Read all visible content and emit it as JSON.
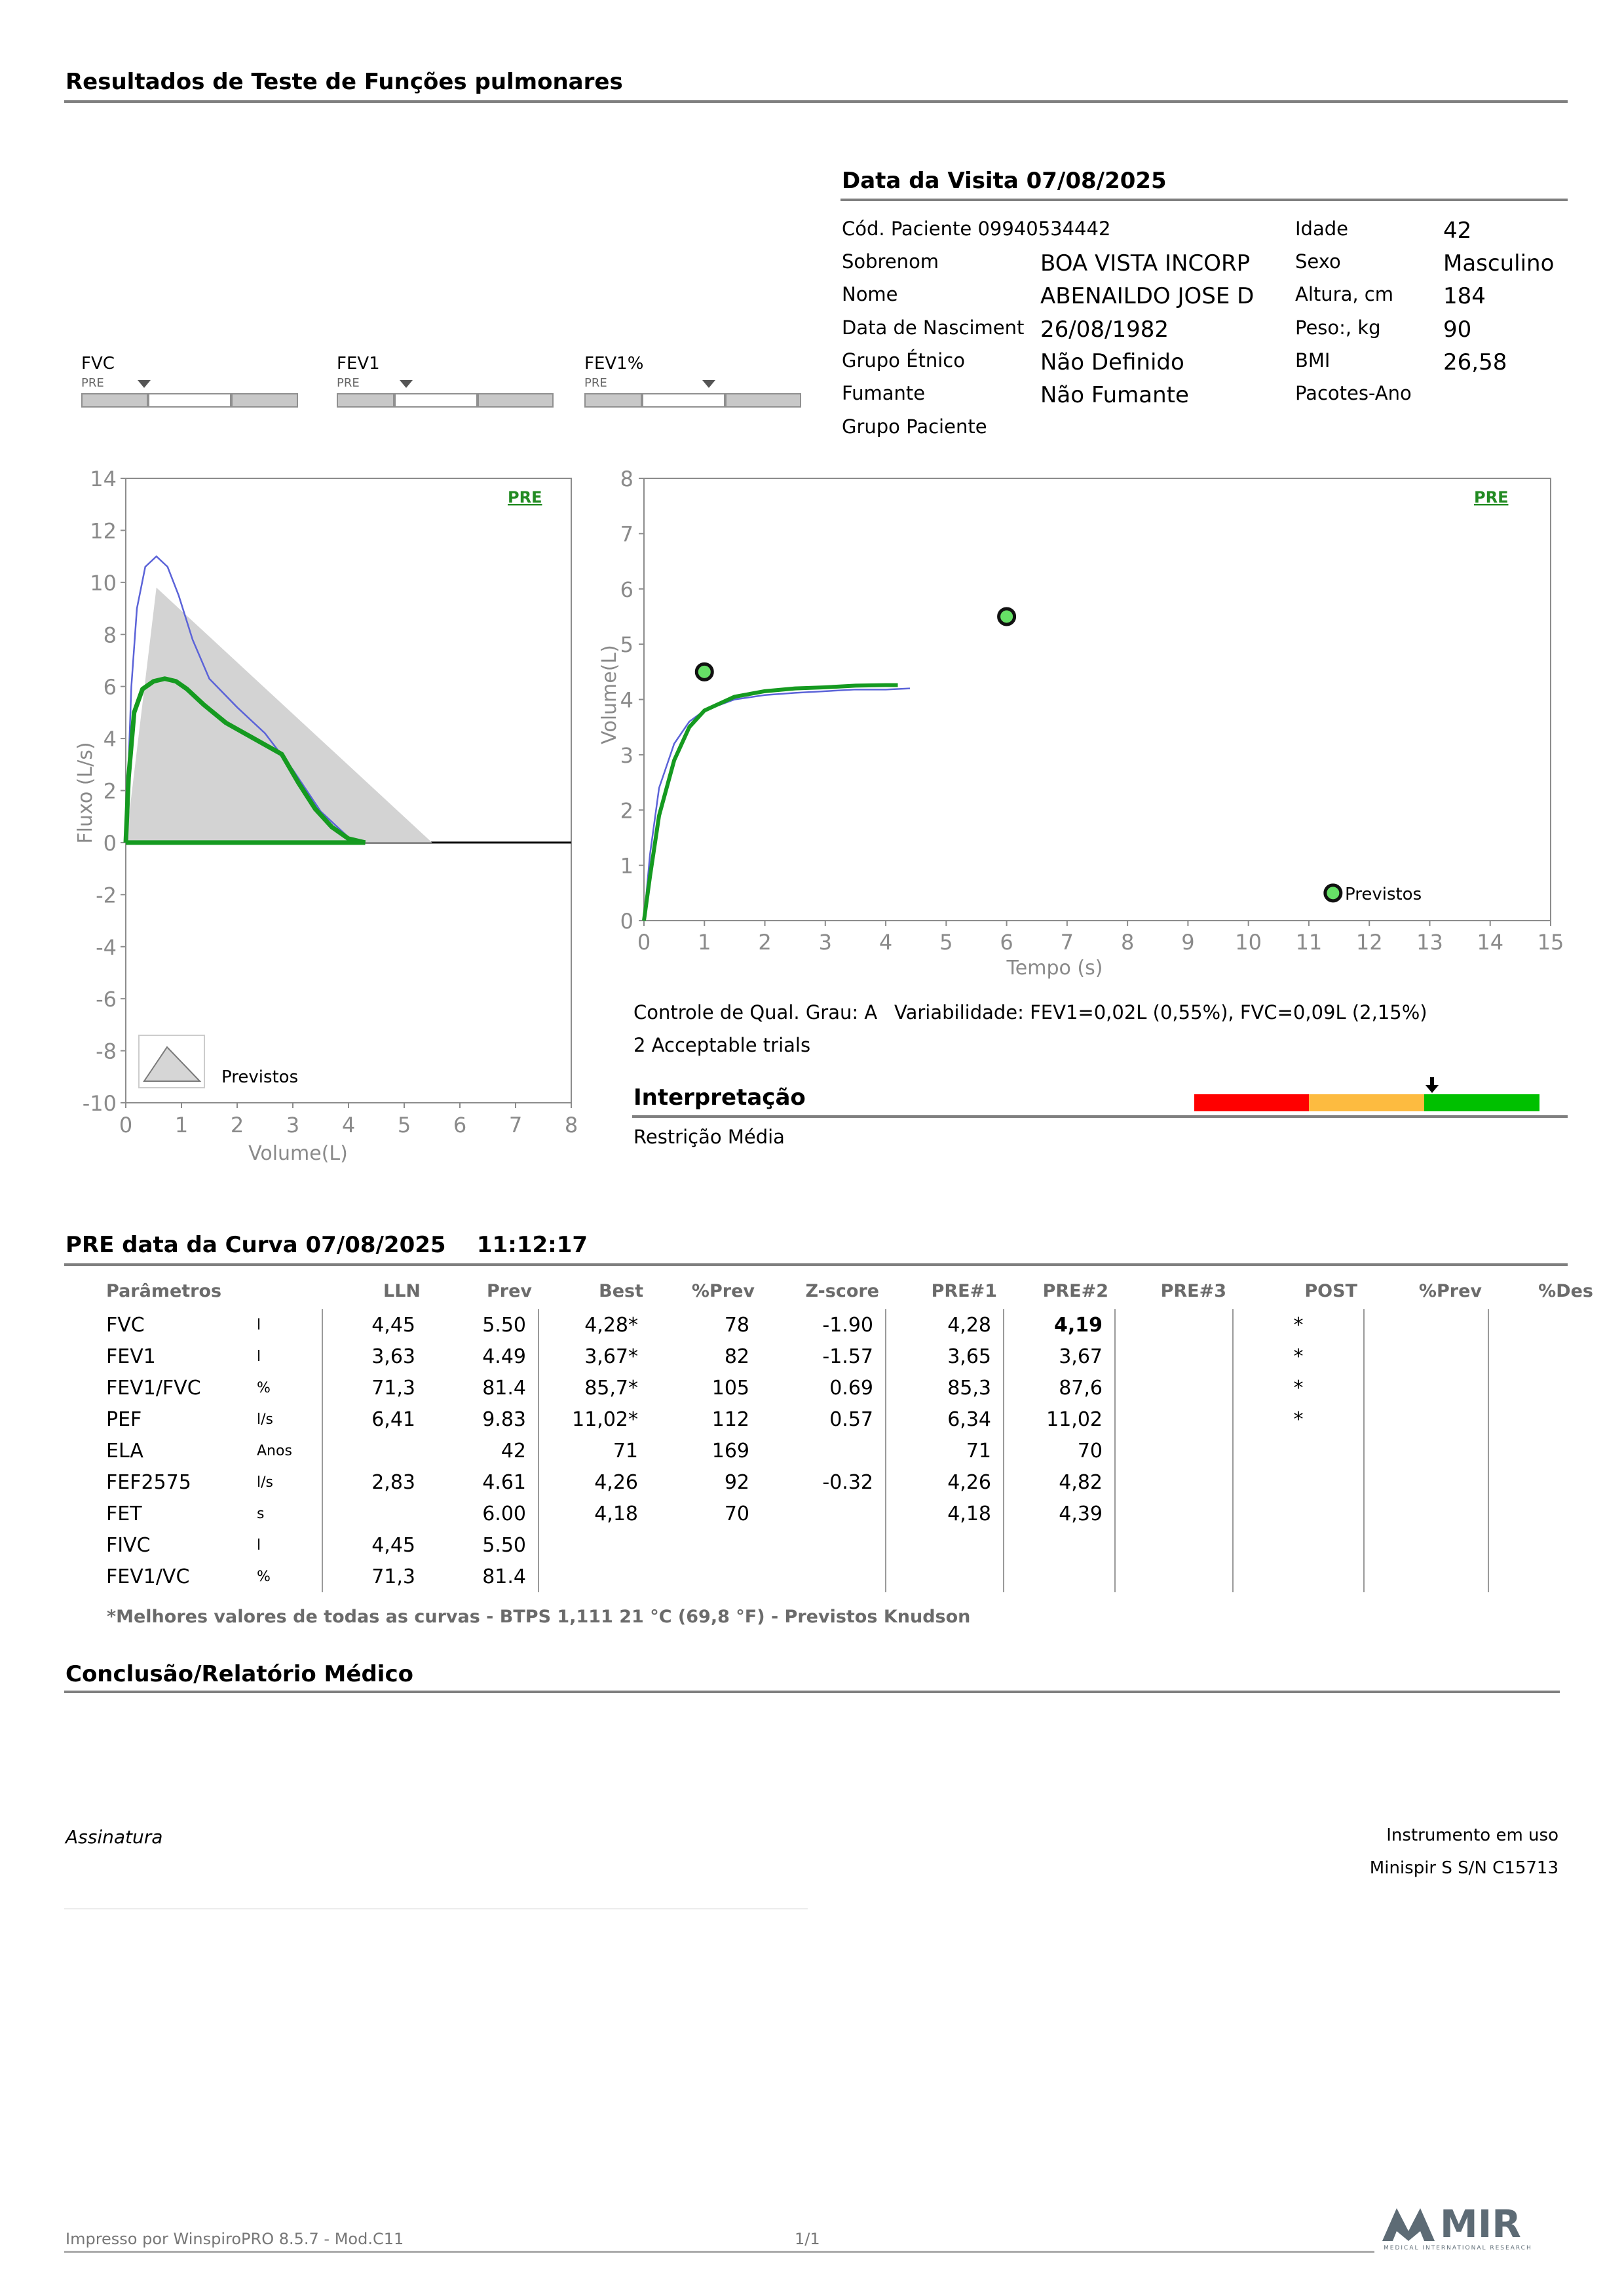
{
  "header": {
    "title": "Resultados de Teste de Funções pulmonares"
  },
  "visit": {
    "title": "Data da Visita 07/08/2025",
    "patient_code_label": "Cód. Paciente 09940534442",
    "surname_label": "Sobrenom",
    "surname": "BOA VISTA INCORP",
    "name_label": "Nome",
    "name": "ABENAILDO JOSE D",
    "birth_label": "Data de Nasciment",
    "birth": "26/08/1982",
    "ethnic_label": "Grupo Étnico",
    "ethnic": "Não Definido",
    "smoker_label": "Fumante",
    "smoker": "Não Fumante",
    "group_label": "Grupo Paciente",
    "age_label": "Idade",
    "age": "42",
    "sex_label": "Sexo",
    "sex": "Masculino",
    "height_label": "Altura, cm",
    "height": "184",
    "weight_label": "Peso:, kg",
    "weight": "90",
    "bmi_label": "BMI",
    "bmi": "26,58",
    "packs_label": "Pacotes-Ano"
  },
  "indicators": [
    {
      "label": "FVC",
      "tag": "PRE"
    },
    {
      "label": "FEV1",
      "tag": "PRE"
    },
    {
      "label": "FEV1%",
      "tag": "PRE"
    }
  ],
  "chart_data": [
    {
      "type": "line",
      "title": "",
      "tag": "PRE",
      "xlabel": "Volume(L)",
      "ylabel": "Fluxo (L/s)",
      "xlim": [
        0,
        8
      ],
      "ylim": [
        -10,
        14
      ],
      "xticks": [
        "0",
        "1",
        "2",
        "3",
        "4",
        "5",
        "6",
        "7",
        "8"
      ],
      "yticks": [
        "14",
        "12",
        "10",
        "8",
        "6",
        "4",
        "2",
        "0",
        "-2",
        "-4",
        "-6",
        "-8",
        "-10"
      ],
      "legend": "Previstos",
      "series": [
        {
          "name": "Previstos",
          "style": "filled-gray",
          "x": [
            0,
            0.55,
            5.5
          ],
          "y": [
            0,
            9.8,
            0
          ]
        },
        {
          "style": "thin-blue",
          "x": [
            0,
            0.1,
            0.2,
            0.35,
            0.55,
            0.75,
            0.95,
            1.2,
            1.5,
            2.0,
            2.5,
            3.0,
            3.5,
            4.0,
            4.3
          ],
          "y": [
            0,
            6.0,
            9.0,
            10.6,
            11.0,
            10.6,
            9.5,
            7.8,
            6.3,
            5.2,
            4.2,
            2.8,
            1.2,
            0.2,
            0
          ]
        },
        {
          "style": "thick-green",
          "x": [
            0,
            0.05,
            0.15,
            0.3,
            0.5,
            0.7,
            0.9,
            1.1,
            1.4,
            1.8,
            2.3,
            2.8,
            3.1,
            3.4,
            3.7,
            4.0,
            4.3
          ],
          "y": [
            0,
            2.5,
            5.0,
            5.9,
            6.2,
            6.3,
            6.2,
            5.9,
            5.3,
            4.6,
            4.0,
            3.4,
            2.3,
            1.3,
            0.6,
            0.15,
            0
          ]
        },
        {
          "style": "thick-green-baseline",
          "x": [
            0,
            4.3
          ],
          "y": [
            0,
            0
          ]
        }
      ]
    },
    {
      "type": "line",
      "title": "",
      "tag": "PRE",
      "xlabel": "Tempo (s)",
      "ylabel": "Volume(L)",
      "xlim": [
        0,
        15
      ],
      "ylim": [
        0,
        8
      ],
      "xticks": [
        "0",
        "1",
        "2",
        "3",
        "4",
        "5",
        "6",
        "7",
        "8",
        "9",
        "10",
        "11",
        "12",
        "13",
        "14",
        "15"
      ],
      "yticks": [
        "8",
        "7",
        "6",
        "5",
        "4",
        "3",
        "2",
        "1",
        "0"
      ],
      "legend": "Previstos",
      "series": [
        {
          "style": "thin-blue",
          "x": [
            0,
            0.1,
            0.25,
            0.5,
            0.75,
            1.0,
            1.5,
            2.0,
            2.5,
            3.0,
            3.5,
            4.0,
            4.4
          ],
          "y": [
            0,
            1.2,
            2.4,
            3.2,
            3.6,
            3.8,
            4.0,
            4.08,
            4.12,
            4.15,
            4.18,
            4.18,
            4.2
          ]
        },
        {
          "style": "thick-green",
          "x": [
            0,
            0.1,
            0.25,
            0.5,
            0.75,
            1.0,
            1.5,
            2.0,
            2.5,
            3.0,
            3.5,
            4.0,
            4.2
          ],
          "y": [
            0,
            0.8,
            1.9,
            2.9,
            3.5,
            3.8,
            4.05,
            4.15,
            4.2,
            4.22,
            4.25,
            4.26,
            4.26
          ]
        },
        {
          "name": "Previstos",
          "style": "marker",
          "x": [
            1.0,
            6.0,
            11.4
          ],
          "y": [
            4.5,
            5.5,
            0.5
          ]
        }
      ]
    }
  ],
  "quality": {
    "grade": "Controle de Qual. Grau: A",
    "variability": "Variabilidade: FEV1=0,02L (0,55%), FVC=0,09L (2,15%)",
    "trials": "2 Acceptable trials"
  },
  "interpretation": {
    "title": "Interpretação",
    "text": "Restrição Média",
    "colors": [
      "#ff0000",
      "#fdbb40",
      "#00c000"
    ]
  },
  "results": {
    "title": "PRE data da Curva 07/08/2025    11:12:17",
    "headers": [
      "Parâmetros",
      "",
      "LLN",
      "Prev",
      "Best",
      "%Prev",
      "Z-score",
      "PRE#1",
      "PRE#2",
      "PRE#3",
      "POST",
      "%Prev",
      "%Des"
    ],
    "rows": [
      [
        "FVC",
        "l",
        "4,45",
        "5.50",
        "4,28*",
        "78",
        "-1.90",
        "4,28",
        "4,19",
        "",
        "*",
        "",
        ""
      ],
      [
        "FEV1",
        "l",
        "3,63",
        "4.49",
        "3,67*",
        "82",
        "-1.57",
        "3,65",
        "3,67",
        "",
        "*",
        "",
        ""
      ],
      [
        "FEV1/FVC",
        "%",
        "71,3",
        "81.4",
        "85,7*",
        "105",
        "0.69",
        "85,3",
        "87,6",
        "",
        "*",
        "",
        ""
      ],
      [
        "PEF",
        "l/s",
        "6,41",
        "9.83",
        "11,02*",
        "112",
        "0.57",
        "6,34",
        "11,02",
        "",
        "*",
        "",
        ""
      ],
      [
        "ELA",
        "Anos",
        "",
        "42",
        "71",
        "169",
        "",
        "71",
        "70",
        "",
        "",
        "",
        ""
      ],
      [
        "FEF2575",
        "l/s",
        "2,83",
        "4.61",
        "4,26",
        "92",
        "-0.32",
        "4,26",
        "4,82",
        "",
        "",
        "",
        ""
      ],
      [
        "FET",
        "s",
        "",
        "6.00",
        "4,18",
        "70",
        "",
        "4,18",
        "4,39",
        "",
        "",
        "",
        ""
      ],
      [
        "FIVC",
        "l",
        "4,45",
        "5.50",
        "",
        "",
        "",
        "",
        "",
        "",
        "",
        "",
        ""
      ],
      [
        "FEV1/VC",
        "%",
        "71,3",
        "81.4",
        "",
        "",
        "",
        "",
        "",
        "",
        "",
        "",
        ""
      ]
    ],
    "footnote": "*Melhores valores de todas as curvas - BTPS  1,111  21 °C  (69,8 °F) - Previstos Knudson"
  },
  "conclusion": {
    "title": "Conclusão/Relatório Médico"
  },
  "signature": {
    "label": "Assinatura",
    "instrument_label": "Instrumento em uso",
    "instrument": "Minispir S S/N C15713"
  },
  "footer": {
    "printed_by": "Impresso por WinspiroPRO  8.5.7 - Mod.C11",
    "page": "1/1",
    "logo": "MIR",
    "logo_sub": "MEDICAL INTERNATIONAL RESEARCH"
  }
}
